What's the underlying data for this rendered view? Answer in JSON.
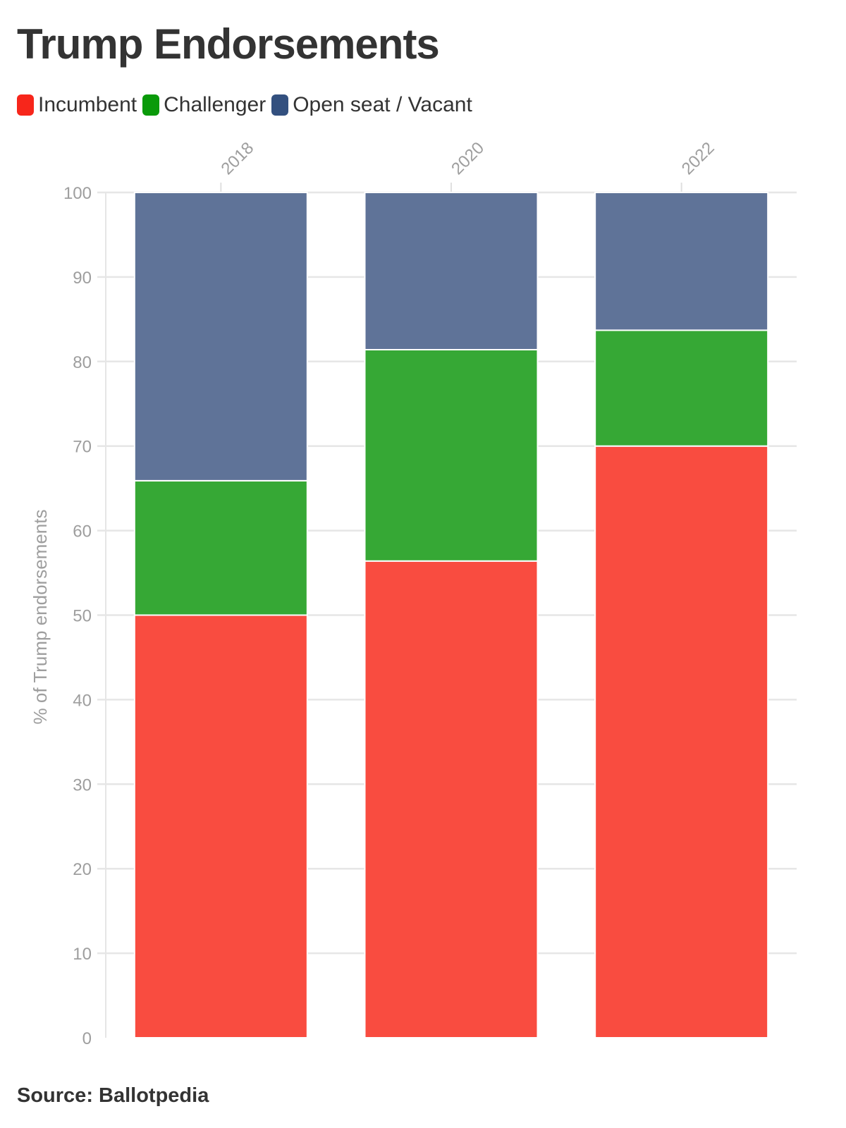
{
  "title": "Trump Endorsements",
  "source": "Source: Ballotpedia",
  "legend": [
    {
      "label": "Incumbent",
      "color": "#f7261b"
    },
    {
      "label": "Challenger",
      "color": "#0a9a0a"
    },
    {
      "label": "Open seat / Vacant",
      "color": "#33507f"
    }
  ],
  "chart_data": {
    "type": "bar",
    "stacked": true,
    "categories": [
      "2018",
      "2020",
      "2022"
    ],
    "series": [
      {
        "name": "Incumbent",
        "color": "#f94c40",
        "values": [
          50,
          56.4,
          70
        ]
      },
      {
        "name": "Challenger",
        "color": "#36a835",
        "values": [
          15.9,
          25.0,
          13.7
        ]
      },
      {
        "name": "Open seat / Vacant",
        "color": "#5f7398",
        "values": [
          34.1,
          18.6,
          16.3
        ]
      }
    ],
    "ylabel": "% of Trump endorsements",
    "xlabel": "",
    "ylim": [
      0,
      100
    ],
    "yticks": [
      0,
      10,
      20,
      30,
      40,
      50,
      60,
      70,
      80,
      90,
      100
    ],
    "x_axis_position": "top",
    "grid": true
  }
}
